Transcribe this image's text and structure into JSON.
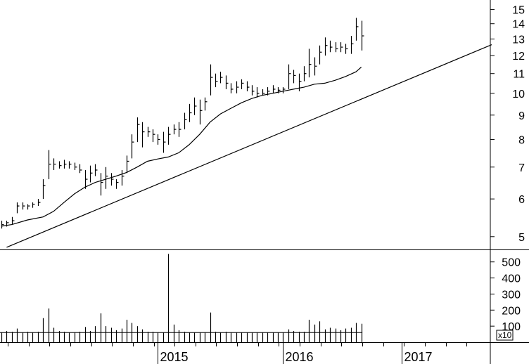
{
  "chart_data": [
    {
      "type": "line",
      "subtype": "ohlc-bar",
      "scale": "log",
      "ylim": [
        4.7,
        15.7
      ],
      "price_ticks": [
        5,
        6,
        7,
        8,
        9,
        10,
        11,
        12,
        13,
        14,
        15
      ],
      "year_labels": [
        {
          "t": 15.0,
          "label": "2015"
        },
        {
          "t": 27.0,
          "label": "2016"
        },
        {
          "t": 38.4,
          "label": "2017"
        }
      ],
      "month_ticks": [
        0.6,
        2.6,
        4.6,
        6.6,
        8.6,
        10.6,
        12.6,
        14.6,
        16.6,
        18.6,
        20.6,
        22.6,
        24.6,
        26.6,
        28.6,
        30.6,
        32.6,
        34.6,
        36.6,
        38.6,
        40.6,
        42.6,
        44.6
      ],
      "x_range": [
        0,
        47
      ],
      "price_bars": [
        [
          0.0,
          5.4,
          5.2,
          5.3
        ],
        [
          0.5,
          5.4,
          5.25,
          5.35
        ],
        [
          1.0,
          5.5,
          5.3,
          5.4
        ],
        [
          1.5,
          5.9,
          5.6,
          5.8
        ],
        [
          2.0,
          5.9,
          5.7,
          5.8
        ],
        [
          2.5,
          5.85,
          5.7,
          5.8
        ],
        [
          3.0,
          5.9,
          5.75,
          5.85
        ],
        [
          3.5,
          6.0,
          5.8,
          5.9
        ],
        [
          4.0,
          6.6,
          6.0,
          6.4
        ],
        [
          4.5,
          7.6,
          6.6,
          7.1
        ],
        [
          5.0,
          7.3,
          6.9,
          7.1
        ],
        [
          5.5,
          7.2,
          6.95,
          7.05
        ],
        [
          6.0,
          7.25,
          6.95,
          7.1
        ],
        [
          6.5,
          7.2,
          6.95,
          7.1
        ],
        [
          7.0,
          7.15,
          6.9,
          7.0
        ],
        [
          7.5,
          7.1,
          6.8,
          6.9
        ],
        [
          8.0,
          6.9,
          6.3,
          6.6
        ],
        [
          8.5,
          7.05,
          6.5,
          6.8
        ],
        [
          9.0,
          7.1,
          6.7,
          6.9
        ],
        [
          9.5,
          6.8,
          6.1,
          6.5
        ],
        [
          10.0,
          7.0,
          6.3,
          6.7
        ],
        [
          10.5,
          6.8,
          6.4,
          6.6
        ],
        [
          11.0,
          6.6,
          6.3,
          6.5
        ],
        [
          11.5,
          6.9,
          6.4,
          6.7
        ],
        [
          12.0,
          7.4,
          6.8,
          7.2
        ],
        [
          12.5,
          8.2,
          7.3,
          7.9
        ],
        [
          13.0,
          8.9,
          7.9,
          8.6
        ],
        [
          13.5,
          8.7,
          7.7,
          8.3
        ],
        [
          14.0,
          8.5,
          8.1,
          8.3
        ],
        [
          14.5,
          8.4,
          7.9,
          8.2
        ],
        [
          15.0,
          8.2,
          7.8,
          8.0
        ],
        [
          15.5,
          8.3,
          7.5,
          7.9
        ],
        [
          16.0,
          8.5,
          7.8,
          8.2
        ],
        [
          16.5,
          8.6,
          8.2,
          8.4
        ],
        [
          17.0,
          8.7,
          8.1,
          8.4
        ],
        [
          17.5,
          9.1,
          8.4,
          8.8
        ],
        [
          18.0,
          9.5,
          8.7,
          9.1
        ],
        [
          18.5,
          9.8,
          9.0,
          9.4
        ],
        [
          19.0,
          9.7,
          8.6,
          9.2
        ],
        [
          19.5,
          9.8,
          9.2,
          9.6
        ],
        [
          20.0,
          11.5,
          9.9,
          10.8
        ],
        [
          20.5,
          11.0,
          10.3,
          10.6
        ],
        [
          21.0,
          11.1,
          10.5,
          10.8
        ],
        [
          21.5,
          10.9,
          10.2,
          10.5
        ],
        [
          22.0,
          10.5,
          10.0,
          10.2
        ],
        [
          22.5,
          10.6,
          10.0,
          10.3
        ],
        [
          23.0,
          10.7,
          10.2,
          10.5
        ],
        [
          23.5,
          10.6,
          10.1,
          10.3
        ],
        [
          24.0,
          10.4,
          9.9,
          10.1
        ],
        [
          24.5,
          10.3,
          9.8,
          10.0
        ],
        [
          25.0,
          10.2,
          9.9,
          10.0
        ],
        [
          25.5,
          10.3,
          9.9,
          10.1
        ],
        [
          26.0,
          10.4,
          10.0,
          10.2
        ],
        [
          26.5,
          10.3,
          10.0,
          10.15
        ],
        [
          27.0,
          10.3,
          10.0,
          10.2
        ],
        [
          27.5,
          11.5,
          10.2,
          11.0
        ],
        [
          28.0,
          11.2,
          10.5,
          10.9
        ],
        [
          28.5,
          11.0,
          10.1,
          10.6
        ],
        [
          29.0,
          11.4,
          10.6,
          11.0
        ],
        [
          29.5,
          12.4,
          10.8,
          11.5
        ],
        [
          30.0,
          11.9,
          10.9,
          11.4
        ],
        [
          30.5,
          12.6,
          11.5,
          12.2
        ],
        [
          31.0,
          13.1,
          12.0,
          12.6
        ],
        [
          31.5,
          12.9,
          12.2,
          12.5
        ],
        [
          32.0,
          12.8,
          12.2,
          12.4
        ],
        [
          32.5,
          12.8,
          12.2,
          12.5
        ],
        [
          33.0,
          12.7,
          12.1,
          12.4
        ],
        [
          33.5,
          13.2,
          12.1,
          12.7
        ],
        [
          34.0,
          14.4,
          12.9,
          13.8
        ],
        [
          34.5,
          14.2,
          12.3,
          13.2
        ]
      ],
      "moving_average": [
        [
          0.0,
          5.26
        ],
        [
          1.0,
          5.3
        ],
        [
          2.5,
          5.42
        ],
        [
          4.0,
          5.5
        ],
        [
          5.0,
          5.65
        ],
        [
          6.0,
          5.9
        ],
        [
          7.0,
          6.15
        ],
        [
          8.0,
          6.35
        ],
        [
          9.0,
          6.5
        ],
        [
          10.0,
          6.6
        ],
        [
          11.0,
          6.7
        ],
        [
          12.0,
          6.82
        ],
        [
          13.0,
          7.0
        ],
        [
          14.0,
          7.2
        ],
        [
          15.0,
          7.28
        ],
        [
          16.0,
          7.35
        ],
        [
          17.0,
          7.5
        ],
        [
          18.0,
          7.8
        ],
        [
          19.0,
          8.2
        ],
        [
          20.0,
          8.7
        ],
        [
          21.0,
          9.05
        ],
        [
          22.0,
          9.3
        ],
        [
          23.0,
          9.55
        ],
        [
          24.0,
          9.75
        ],
        [
          25.0,
          9.9
        ],
        [
          26.0,
          10.0
        ],
        [
          27.0,
          10.1
        ],
        [
          28.0,
          10.2
        ],
        [
          29.0,
          10.3
        ],
        [
          30.0,
          10.45
        ],
        [
          31.0,
          10.5
        ],
        [
          32.0,
          10.65
        ],
        [
          33.0,
          10.85
        ],
        [
          34.0,
          11.1
        ],
        [
          34.5,
          11.35
        ]
      ],
      "trendline": [
        [
          0.5,
          4.75
        ],
        [
          47.0,
          12.65
        ]
      ],
      "volume_label": "x10",
      "volume_ticks": [
        100,
        200,
        300,
        400,
        500
      ],
      "volume_ylim": [
        0,
        560
      ],
      "volume_baseline": 60,
      "volume_bars": [
        [
          0.0,
          60
        ],
        [
          0.5,
          70
        ],
        [
          1.0,
          65
        ],
        [
          1.5,
          85
        ],
        [
          2.0,
          60
        ],
        [
          2.5,
          65
        ],
        [
          3.0,
          60
        ],
        [
          3.5,
          65
        ],
        [
          4.0,
          150
        ],
        [
          4.5,
          210
        ],
        [
          5.0,
          90
        ],
        [
          5.5,
          70
        ],
        [
          6.0,
          65
        ],
        [
          6.5,
          60
        ],
        [
          7.0,
          60
        ],
        [
          7.5,
          65
        ],
        [
          8.0,
          95
        ],
        [
          8.5,
          70
        ],
        [
          9.0,
          100
        ],
        [
          9.5,
          180
        ],
        [
          10.0,
          100
        ],
        [
          10.5,
          90
        ],
        [
          11.0,
          75
        ],
        [
          11.5,
          85
        ],
        [
          12.0,
          140
        ],
        [
          12.5,
          120
        ],
        [
          13.0,
          100
        ],
        [
          13.5,
          80
        ],
        [
          14.0,
          65
        ],
        [
          14.5,
          65
        ],
        [
          15.0,
          60
        ],
        [
          15.5,
          60
        ],
        [
          16.0,
          550
        ],
        [
          16.5,
          110
        ],
        [
          17.0,
          75
        ],
        [
          17.5,
          65
        ],
        [
          18.0,
          60
        ],
        [
          18.5,
          60
        ],
        [
          19.0,
          60
        ],
        [
          19.5,
          60
        ],
        [
          20.0,
          185
        ],
        [
          20.5,
          65
        ],
        [
          21.0,
          60
        ],
        [
          21.5,
          65
        ],
        [
          22.0,
          60
        ],
        [
          22.5,
          60
        ],
        [
          23.0,
          60
        ],
        [
          23.5,
          60
        ],
        [
          24.0,
          60
        ],
        [
          24.5,
          60
        ],
        [
          25.0,
          60
        ],
        [
          25.5,
          60
        ],
        [
          26.0,
          60
        ],
        [
          26.5,
          60
        ],
        [
          27.0,
          60
        ],
        [
          27.5,
          80
        ],
        [
          28.0,
          70
        ],
        [
          28.5,
          65
        ],
        [
          29.0,
          65
        ],
        [
          29.5,
          140
        ],
        [
          30.0,
          110
        ],
        [
          30.5,
          130
        ],
        [
          31.0,
          80
        ],
        [
          31.5,
          90
        ],
        [
          32.0,
          85
        ],
        [
          32.5,
          75
        ],
        [
          33.0,
          85
        ],
        [
          33.5,
          90
        ],
        [
          34.0,
          120
        ],
        [
          34.5,
          115
        ]
      ]
    }
  ]
}
